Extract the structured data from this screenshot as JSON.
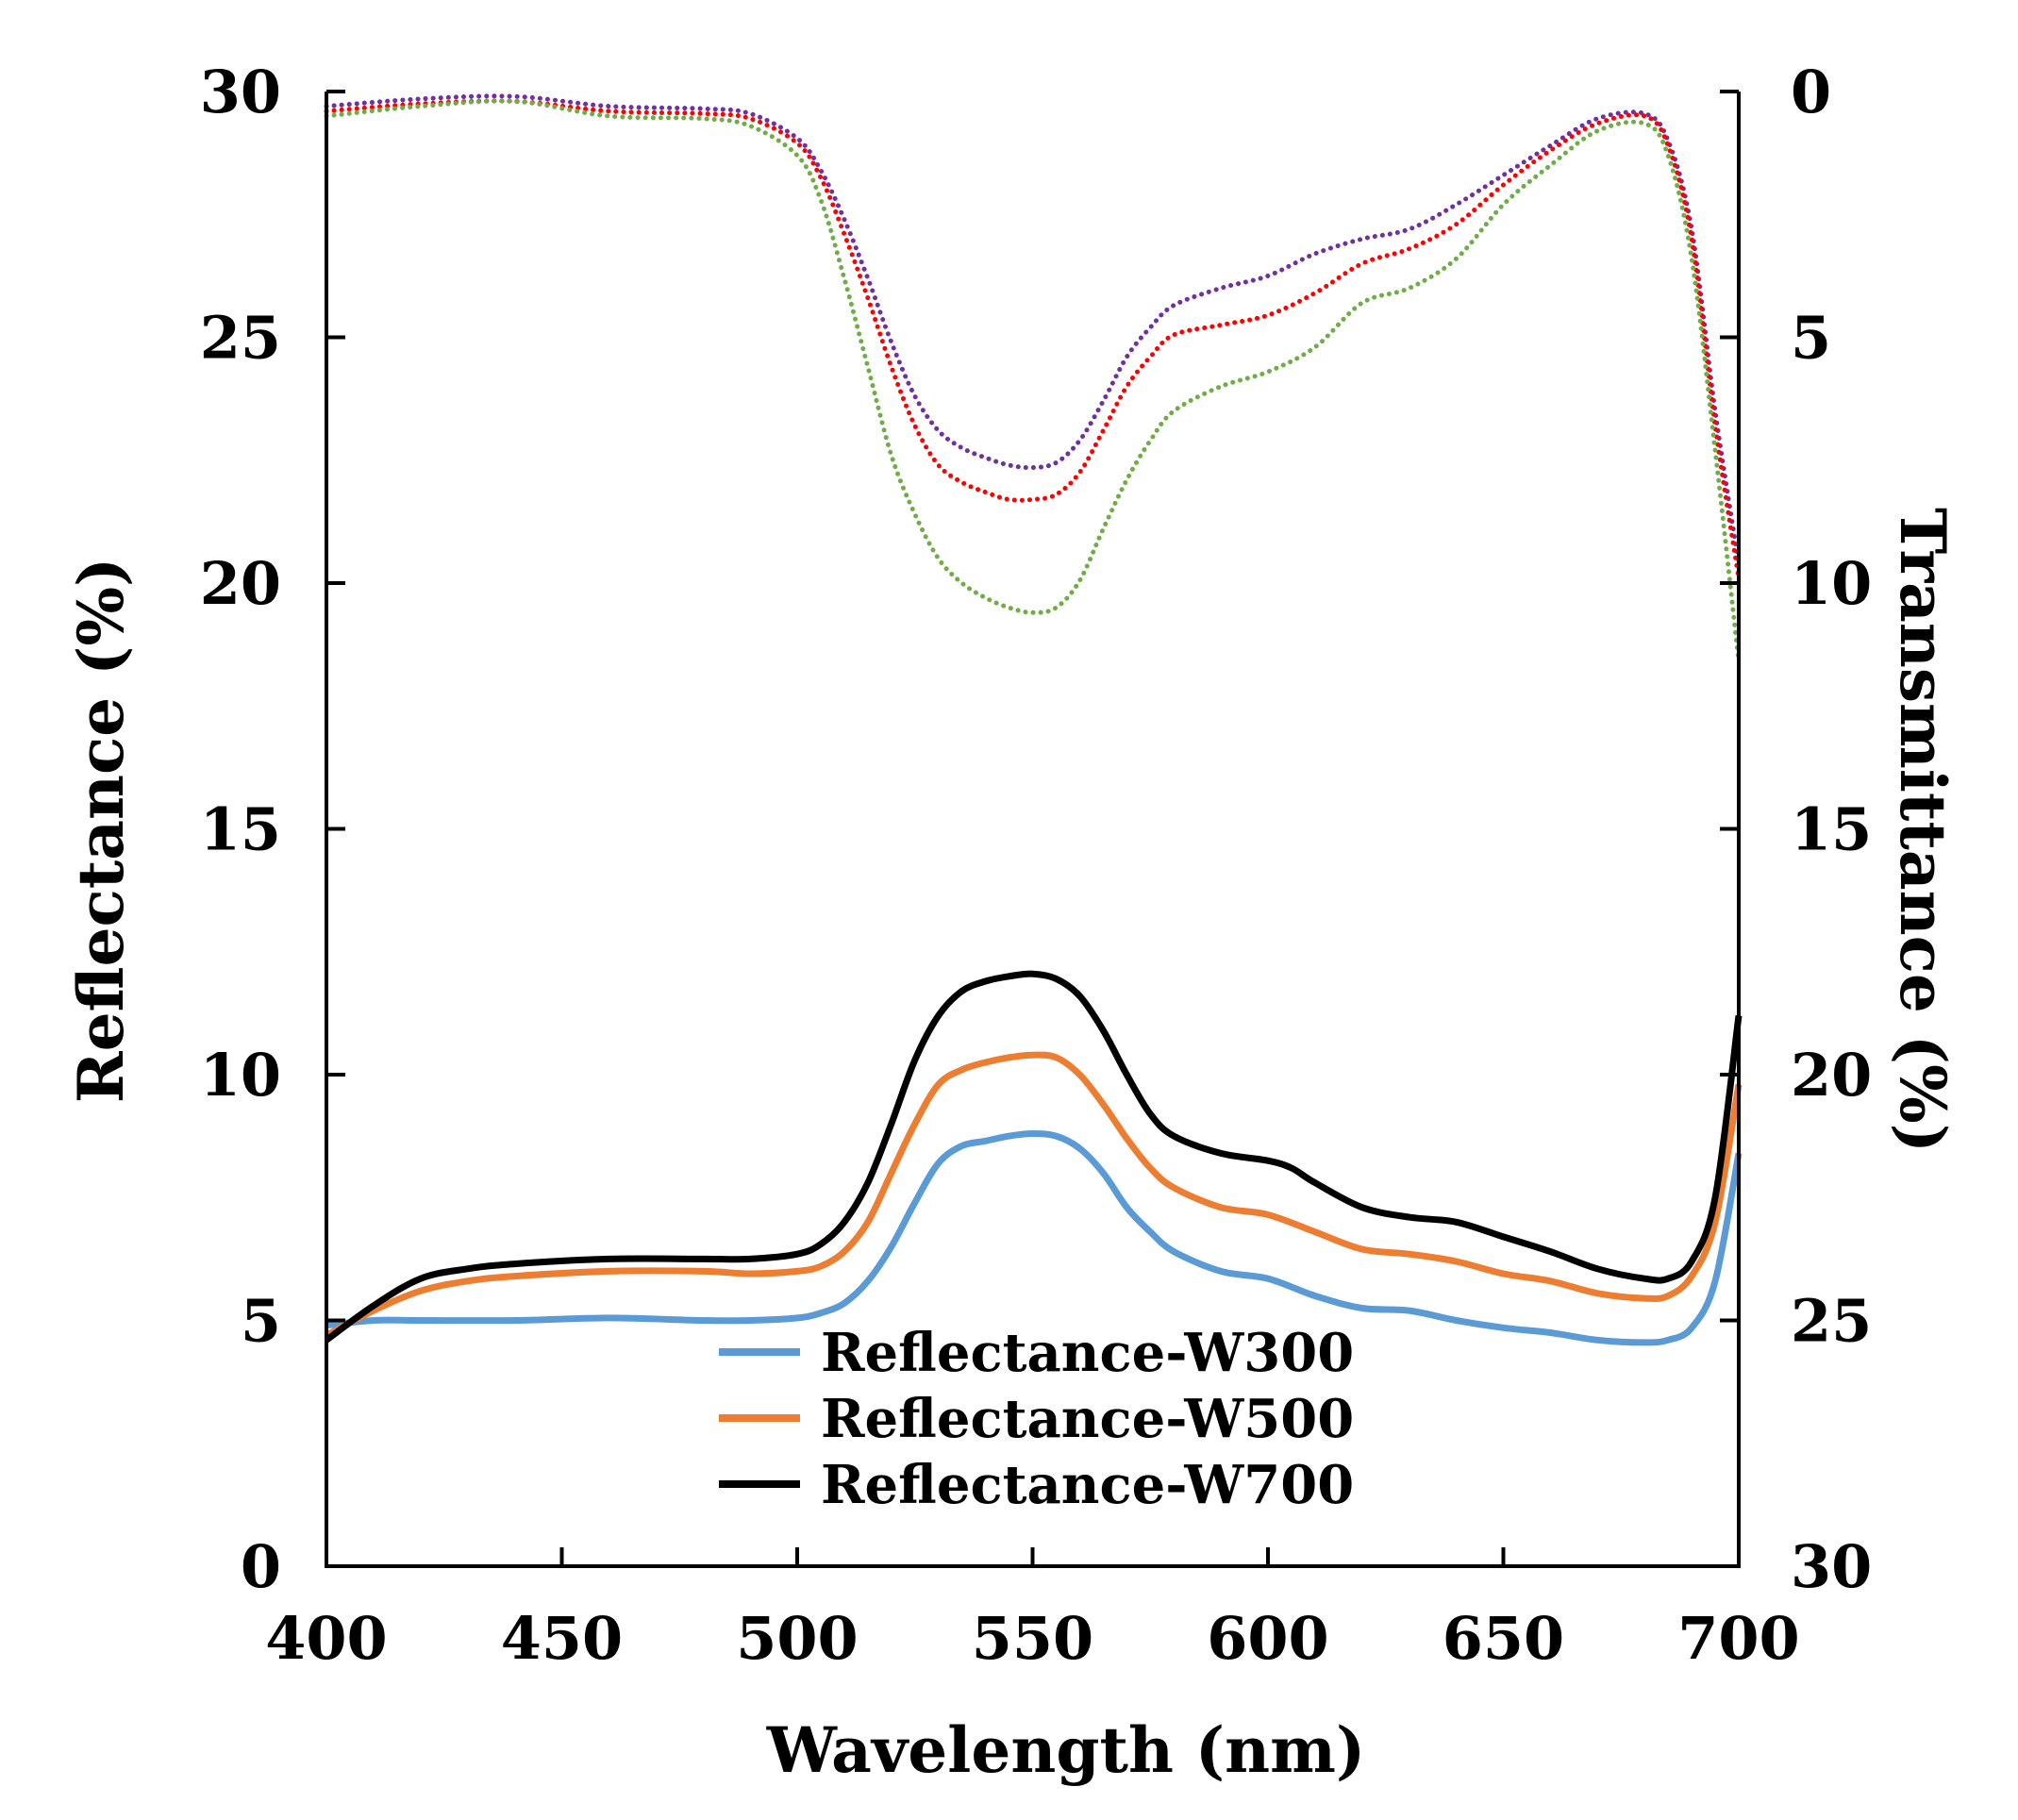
{
  "chart_data": {
    "type": "line",
    "title": "",
    "xlabel": "Wavelength (nm)",
    "ylabel": "Reflectance (%)",
    "y2label": "Transmittance (%)",
    "xlim": [
      400,
      700
    ],
    "ylim": [
      0,
      30
    ],
    "y2lim": [
      0,
      30
    ],
    "y2_inverted": true,
    "x_ticks": [
      400,
      450,
      500,
      550,
      600,
      650,
      700
    ],
    "y_ticks": [
      0,
      5,
      10,
      15,
      20,
      25,
      30
    ],
    "y2_ticks": [
      0,
      5,
      10,
      15,
      20,
      25,
      30
    ],
    "grid": false,
    "legend_position": "bottom-center",
    "series": [
      {
        "name": "Reflectance-W300",
        "axis": "left",
        "style": "solid",
        "color": "#5b9bd5",
        "x": [
          400,
          410,
          420,
          440,
          460,
          480,
          490,
          500,
          505,
          510,
          515,
          520,
          525,
          530,
          535,
          540,
          545,
          550,
          555,
          560,
          565,
          570,
          575,
          580,
          590,
          600,
          610,
          620,
          630,
          640,
          650,
          660,
          670,
          680,
          685,
          690,
          695,
          700
        ],
        "y": [
          4.9,
          5.0,
          5.0,
          5.0,
          5.05,
          5.0,
          5.0,
          5.05,
          5.15,
          5.35,
          5.8,
          6.5,
          7.4,
          8.2,
          8.55,
          8.65,
          8.75,
          8.8,
          8.75,
          8.5,
          8.0,
          7.3,
          6.8,
          6.4,
          6.0,
          5.85,
          5.5,
          5.25,
          5.2,
          5.0,
          4.85,
          4.75,
          4.6,
          4.55,
          4.6,
          4.85,
          5.8,
          8.4
        ]
      },
      {
        "name": "Reflectance-W500",
        "axis": "left",
        "style": "solid",
        "color": "#ed7d31",
        "x": [
          400,
          410,
          420,
          430,
          440,
          460,
          480,
          490,
          500,
          505,
          510,
          515,
          520,
          525,
          530,
          535,
          540,
          545,
          550,
          555,
          560,
          565,
          570,
          575,
          580,
          590,
          600,
          610,
          620,
          630,
          640,
          650,
          660,
          670,
          680,
          685,
          690,
          695,
          700
        ],
        "y": [
          4.7,
          5.2,
          5.6,
          5.8,
          5.9,
          6.0,
          6.0,
          5.95,
          6.0,
          6.1,
          6.4,
          7.0,
          8.0,
          9.0,
          9.8,
          10.1,
          10.25,
          10.35,
          10.4,
          10.35,
          10.0,
          9.4,
          8.7,
          8.1,
          7.7,
          7.3,
          7.15,
          6.8,
          6.45,
          6.35,
          6.2,
          5.95,
          5.8,
          5.55,
          5.45,
          5.5,
          5.9,
          7.0,
          9.8
        ]
      },
      {
        "name": "Reflectance-W700",
        "axis": "left",
        "style": "solid",
        "color": "#000000",
        "x": [
          400,
          410,
          420,
          430,
          440,
          460,
          480,
          490,
          500,
          505,
          510,
          515,
          520,
          525,
          530,
          535,
          540,
          545,
          550,
          555,
          560,
          565,
          570,
          575,
          580,
          590,
          600,
          605,
          610,
          620,
          630,
          640,
          650,
          660,
          670,
          680,
          685,
          690,
          695,
          700
        ],
        "y": [
          4.6,
          5.3,
          5.85,
          6.05,
          6.15,
          6.25,
          6.25,
          6.25,
          6.35,
          6.55,
          7.0,
          7.8,
          9.0,
          10.3,
          11.2,
          11.7,
          11.9,
          12.0,
          12.05,
          11.95,
          11.6,
          10.9,
          10.0,
          9.2,
          8.75,
          8.4,
          8.25,
          8.1,
          7.8,
          7.3,
          7.1,
          7.0,
          6.7,
          6.4,
          6.05,
          5.85,
          5.85,
          6.2,
          7.5,
          11.2
        ]
      },
      {
        "name": "",
        "axis": "right",
        "style": "dotted",
        "color": "#7030a0",
        "x": [
          400,
          420,
          440,
          460,
          480,
          490,
          500,
          505,
          510,
          515,
          520,
          525,
          530,
          535,
          540,
          545,
          550,
          555,
          560,
          565,
          570,
          575,
          580,
          590,
          600,
          610,
          620,
          630,
          640,
          650,
          660,
          670,
          680,
          685,
          690,
          695,
          700
        ],
        "y": [
          0.3,
          0.15,
          0.1,
          0.3,
          0.35,
          0.45,
          0.95,
          1.6,
          2.6,
          3.8,
          5.1,
          6.2,
          6.9,
          7.25,
          7.45,
          7.6,
          7.65,
          7.55,
          7.1,
          6.3,
          5.4,
          4.8,
          4.35,
          4.0,
          3.75,
          3.3,
          3.0,
          2.8,
          2.3,
          1.7,
          1.1,
          0.55,
          0.45,
          1.0,
          2.8,
          6.5,
          9.6
        ]
      },
      {
        "name": "",
        "axis": "right",
        "style": "dotted",
        "color": "#ff0000",
        "x": [
          400,
          420,
          440,
          460,
          480,
          490,
          500,
          505,
          510,
          515,
          520,
          525,
          530,
          535,
          540,
          545,
          550,
          555,
          560,
          565,
          570,
          575,
          580,
          590,
          600,
          610,
          620,
          630,
          640,
          650,
          660,
          670,
          680,
          685,
          690,
          695,
          700
        ],
        "y": [
          0.4,
          0.25,
          0.2,
          0.4,
          0.45,
          0.55,
          1.05,
          1.75,
          2.9,
          4.2,
          5.6,
          6.8,
          7.6,
          7.95,
          8.15,
          8.3,
          8.3,
          8.2,
          7.75,
          6.9,
          6.0,
          5.4,
          4.95,
          4.75,
          4.55,
          4.1,
          3.5,
          3.2,
          2.7,
          1.9,
          1.2,
          0.65,
          0.5,
          1.1,
          3.0,
          6.8,
          9.9
        ]
      },
      {
        "name": "",
        "axis": "right",
        "style": "dotted",
        "color": "#70ad47",
        "x": [
          400,
          420,
          440,
          460,
          480,
          490,
          500,
          505,
          510,
          515,
          520,
          525,
          530,
          535,
          540,
          545,
          550,
          555,
          560,
          565,
          570,
          575,
          580,
          590,
          600,
          610,
          620,
          630,
          640,
          650,
          660,
          670,
          680,
          685,
          690,
          695,
          700
        ],
        "y": [
          0.5,
          0.3,
          0.2,
          0.5,
          0.55,
          0.7,
          1.3,
          2.2,
          3.8,
          5.6,
          7.4,
          8.6,
          9.5,
          10.0,
          10.3,
          10.5,
          10.6,
          10.5,
          9.95,
          8.9,
          7.9,
          7.1,
          6.5,
          6.0,
          5.7,
          5.2,
          4.3,
          4.0,
          3.4,
          2.3,
          1.5,
          0.8,
          0.65,
          1.3,
          3.4,
          7.3,
          11.6
        ]
      }
    ]
  }
}
